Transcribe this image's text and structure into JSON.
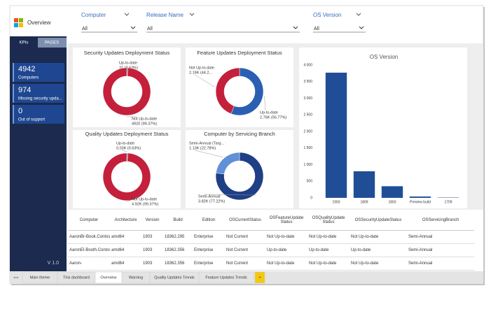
{
  "app": {
    "title": "Overview"
  },
  "filters": [
    {
      "label": "Computer",
      "value": "All"
    },
    {
      "label": "Release Name",
      "value": "All"
    },
    {
      "label": "OS Version",
      "value": "All"
    }
  ],
  "sidebar": {
    "tabs": [
      "KPIs",
      "PAGES"
    ],
    "kpis": [
      {
        "value": "4942",
        "label": "Computers"
      },
      {
        "value": "974",
        "label": "Missing security upda..."
      },
      {
        "value": "0",
        "label": "Out of support"
      }
    ],
    "version": "V 1.0"
  },
  "donuts": [
    {
      "title": "Security Updates Deployment Status",
      "slices": [
        {
          "name": "Up-to-date",
          "value": 31,
          "value_label": "31 (0.63%)",
          "color": "#2b5fb4"
        },
        {
          "name": "Not Up-to-date",
          "value": 4920,
          "value_label": "4920 (99.37%)",
          "color": "#c4203b"
        }
      ]
    },
    {
      "title": "Feature Updates Deployment Status",
      "slices": [
        {
          "name": "Up-to-date",
          "value": 2760,
          "value_label": "2.76K (55.77%)",
          "color": "#2b5fb4"
        },
        {
          "name": "Not Up-to-date",
          "value": 2190,
          "value_label": "2.19K (44.2...",
          "color": "#c4203b"
        }
      ]
    },
    {
      "title": "Quality Updates Deployment Status",
      "slices": [
        {
          "name": "Up-to-date",
          "value": 30,
          "value_label": "0.03K (0.63%)",
          "color": "#2b5fb4"
        },
        {
          "name": "Not Up-to-date",
          "value": 4920,
          "value_label": "4.92K (99.37%)",
          "color": "#c4203b"
        }
      ]
    },
    {
      "title": "Computer by Servicing Branch",
      "slices": [
        {
          "name": "Semi-Annual",
          "value": 3820,
          "value_label": "3.82K (77.22%)",
          "color": "#1f3f86"
        },
        {
          "name": "Semi-Annual (Targ...",
          "value": 1130,
          "value_label": "1.13K (22.78%)",
          "color": "#5f90d8"
        }
      ]
    }
  ],
  "chart_data": {
    "type": "bar",
    "title": "OS Version",
    "categories": [
      "1903",
      "1809",
      "1803",
      "Preview build",
      "1709"
    ],
    "values": [
      3770,
      800,
      350,
      40,
      10
    ],
    "color": "#1f4e96",
    "ylim": [
      0,
      4000
    ],
    "yticks": [
      0,
      500,
      {
        "value": 1000,
        "label": "1 000"
      },
      {
        "value": 1500,
        "label": "1 500"
      },
      {
        "value": 2000,
        "label": "2 000"
      },
      {
        "value": 2500,
        "label": "2 500"
      },
      {
        "value": 3000,
        "label": "3 000"
      },
      {
        "value": 3500,
        "label": "3 500"
      },
      {
        "value": 4000,
        "label": "4 000"
      }
    ],
    "grid": false
  },
  "table": {
    "columns": [
      "Computer",
      "Architecture",
      "Version",
      "Build",
      "Edition",
      "OSCurrentStatus",
      "OSFeatureUpdate Status",
      "OSQualityUpdate Status",
      "OSSecurityUpdateStatus",
      "OSServicingBranch"
    ],
    "rows": [
      [
        "AaronBr-Book.Contoso",
        "amd64",
        "1903",
        "18362.295",
        "Enterprise",
        "Not Current",
        "Not Up-to-date",
        "Not Up-to-date",
        "Not Up-to-date",
        "Semi-Annual"
      ],
      [
        "AaronEl-Booth.Contoso",
        "amd64",
        "1903",
        "18362.356",
        "Enterprise",
        "Not Current",
        "Up-to-date",
        "Up-to-date",
        "Up-to-date",
        "Semi-Annual"
      ],
      [
        "Aaron-",
        "amd64",
        "1903",
        "18362.356",
        "Enterprise",
        "Not Current",
        "Not Up-to-date",
        "Not Up-to-date",
        "Not Up-to-date",
        "Semi-Annual"
      ]
    ]
  },
  "tabs": [
    "Main theme",
    "This dashboard",
    "Overview",
    "Warning",
    "Quality Updates Trends",
    "Feature Updates Trends",
    "+"
  ]
}
